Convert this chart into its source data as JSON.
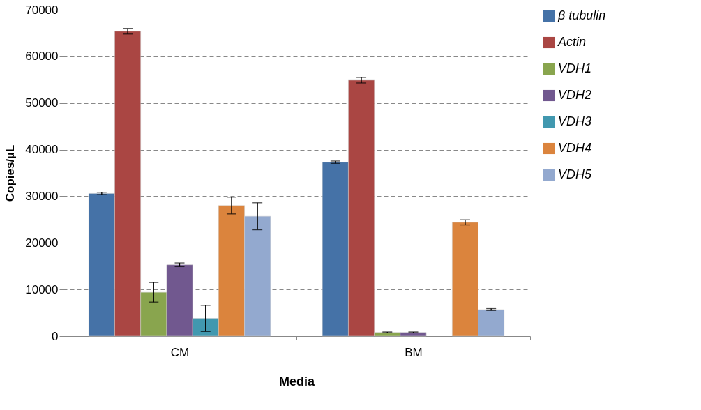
{
  "chart_data": {
    "type": "bar",
    "xlabel": "Media",
    "ylabel": "Copies/µL",
    "categories": [
      "CM",
      "BM"
    ],
    "series": [
      {
        "name": "β tubulin",
        "color": "#4572a7",
        "values": [
          30600,
          37300
        ],
        "errors": [
          250,
          250
        ]
      },
      {
        "name": "Actin",
        "color": "#aa4643",
        "values": [
          65400,
          54900
        ],
        "errors": [
          600,
          600
        ]
      },
      {
        "name": "VDH1",
        "color": "#89a54e",
        "values": [
          9400,
          800
        ],
        "errors": [
          2100,
          100
        ]
      },
      {
        "name": "VDH2",
        "color": "#71588f",
        "values": [
          15300,
          800
        ],
        "errors": [
          400,
          100
        ]
      },
      {
        "name": "VDH3",
        "color": "#4198af",
        "values": [
          3800,
          null
        ],
        "errors": [
          2800,
          null
        ]
      },
      {
        "name": "VDH4",
        "color": "#db843d",
        "values": [
          28000,
          24400
        ],
        "errors": [
          1800,
          550
        ]
      },
      {
        "name": "VDH5",
        "color": "#93a9cf",
        "values": [
          25700,
          5700
        ],
        "errors": [
          2900,
          200
        ]
      }
    ],
    "ylim": [
      0,
      70000
    ],
    "yticks": [
      0,
      10000,
      20000,
      30000,
      40000,
      50000,
      60000,
      70000
    ],
    "grid": "y",
    "legend": "right"
  }
}
